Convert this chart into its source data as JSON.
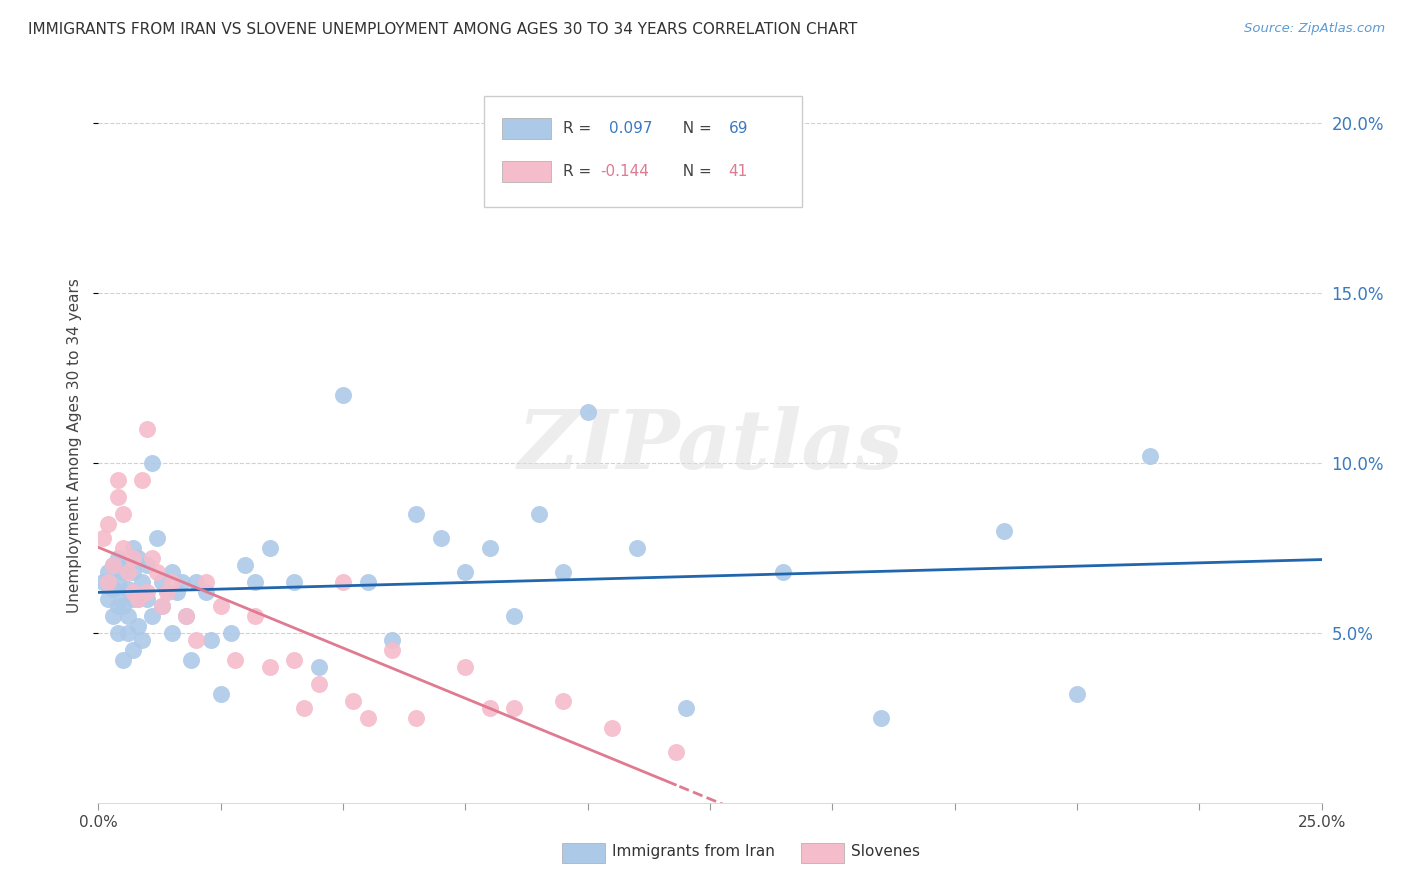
{
  "title": "IMMIGRANTS FROM IRAN VS SLOVENE UNEMPLOYMENT AMONG AGES 30 TO 34 YEARS CORRELATION CHART",
  "source": "Source: ZipAtlas.com",
  "ylabel": "Unemployment Among Ages 30 to 34 years",
  "x_min": 0.0,
  "x_max": 0.25,
  "y_min": 0.0,
  "y_max": 0.21,
  "y_ticks_right": [
    0.05,
    0.1,
    0.15,
    0.2
  ],
  "y_tick_labels_right": [
    "5.0%",
    "10.0%",
    "15.0%",
    "20.0%"
  ],
  "iran_color": "#adc9e8",
  "slovene_color": "#f5bccb",
  "iran_trend_color": "#2166ac",
  "slovene_trend_color": "#e07a90",
  "background_color": "#ffffff",
  "grid_color": "#cccccc",
  "watermark_text": "ZIPatlas",
  "iran_R": 0.097,
  "iran_N": 69,
  "slovene_R": -0.144,
  "slovene_N": 41,
  "iran_x": [
    0.001,
    0.002,
    0.002,
    0.003,
    0.003,
    0.003,
    0.004,
    0.004,
    0.004,
    0.004,
    0.005,
    0.005,
    0.005,
    0.005,
    0.006,
    0.006,
    0.006,
    0.006,
    0.007,
    0.007,
    0.007,
    0.007,
    0.008,
    0.008,
    0.008,
    0.009,
    0.009,
    0.01,
    0.01,
    0.011,
    0.011,
    0.012,
    0.013,
    0.013,
    0.014,
    0.015,
    0.015,
    0.016,
    0.017,
    0.018,
    0.019,
    0.02,
    0.022,
    0.023,
    0.025,
    0.027,
    0.03,
    0.032,
    0.035,
    0.04,
    0.045,
    0.05,
    0.055,
    0.06,
    0.065,
    0.07,
    0.075,
    0.08,
    0.085,
    0.09,
    0.095,
    0.1,
    0.11,
    0.12,
    0.14,
    0.16,
    0.185,
    0.2,
    0.215
  ],
  "iran_y": [
    0.065,
    0.06,
    0.068,
    0.055,
    0.063,
    0.07,
    0.05,
    0.058,
    0.065,
    0.072,
    0.042,
    0.058,
    0.062,
    0.068,
    0.05,
    0.055,
    0.063,
    0.07,
    0.045,
    0.06,
    0.068,
    0.075,
    0.052,
    0.06,
    0.072,
    0.048,
    0.065,
    0.06,
    0.07,
    0.055,
    0.1,
    0.078,
    0.058,
    0.065,
    0.062,
    0.05,
    0.068,
    0.062,
    0.065,
    0.055,
    0.042,
    0.065,
    0.062,
    0.048,
    0.032,
    0.05,
    0.07,
    0.065,
    0.075,
    0.065,
    0.04,
    0.12,
    0.065,
    0.048,
    0.085,
    0.078,
    0.068,
    0.075,
    0.055,
    0.085,
    0.068,
    0.115,
    0.075,
    0.028,
    0.068,
    0.025,
    0.08,
    0.032,
    0.102
  ],
  "slovene_x": [
    0.001,
    0.002,
    0.002,
    0.003,
    0.004,
    0.004,
    0.005,
    0.005,
    0.006,
    0.007,
    0.007,
    0.008,
    0.009,
    0.01,
    0.01,
    0.011,
    0.012,
    0.013,
    0.014,
    0.015,
    0.018,
    0.02,
    0.022,
    0.025,
    0.028,
    0.032,
    0.035,
    0.04,
    0.042,
    0.045,
    0.05,
    0.052,
    0.055,
    0.06,
    0.065,
    0.075,
    0.08,
    0.085,
    0.095,
    0.105,
    0.118
  ],
  "slovene_y": [
    0.078,
    0.065,
    0.082,
    0.07,
    0.09,
    0.095,
    0.075,
    0.085,
    0.068,
    0.062,
    0.072,
    0.06,
    0.095,
    0.062,
    0.11,
    0.072,
    0.068,
    0.058,
    0.062,
    0.065,
    0.055,
    0.048,
    0.065,
    0.058,
    0.042,
    0.055,
    0.04,
    0.042,
    0.028,
    0.035,
    0.065,
    0.03,
    0.025,
    0.045,
    0.025,
    0.04,
    0.028,
    0.028,
    0.03,
    0.022,
    0.015
  ]
}
